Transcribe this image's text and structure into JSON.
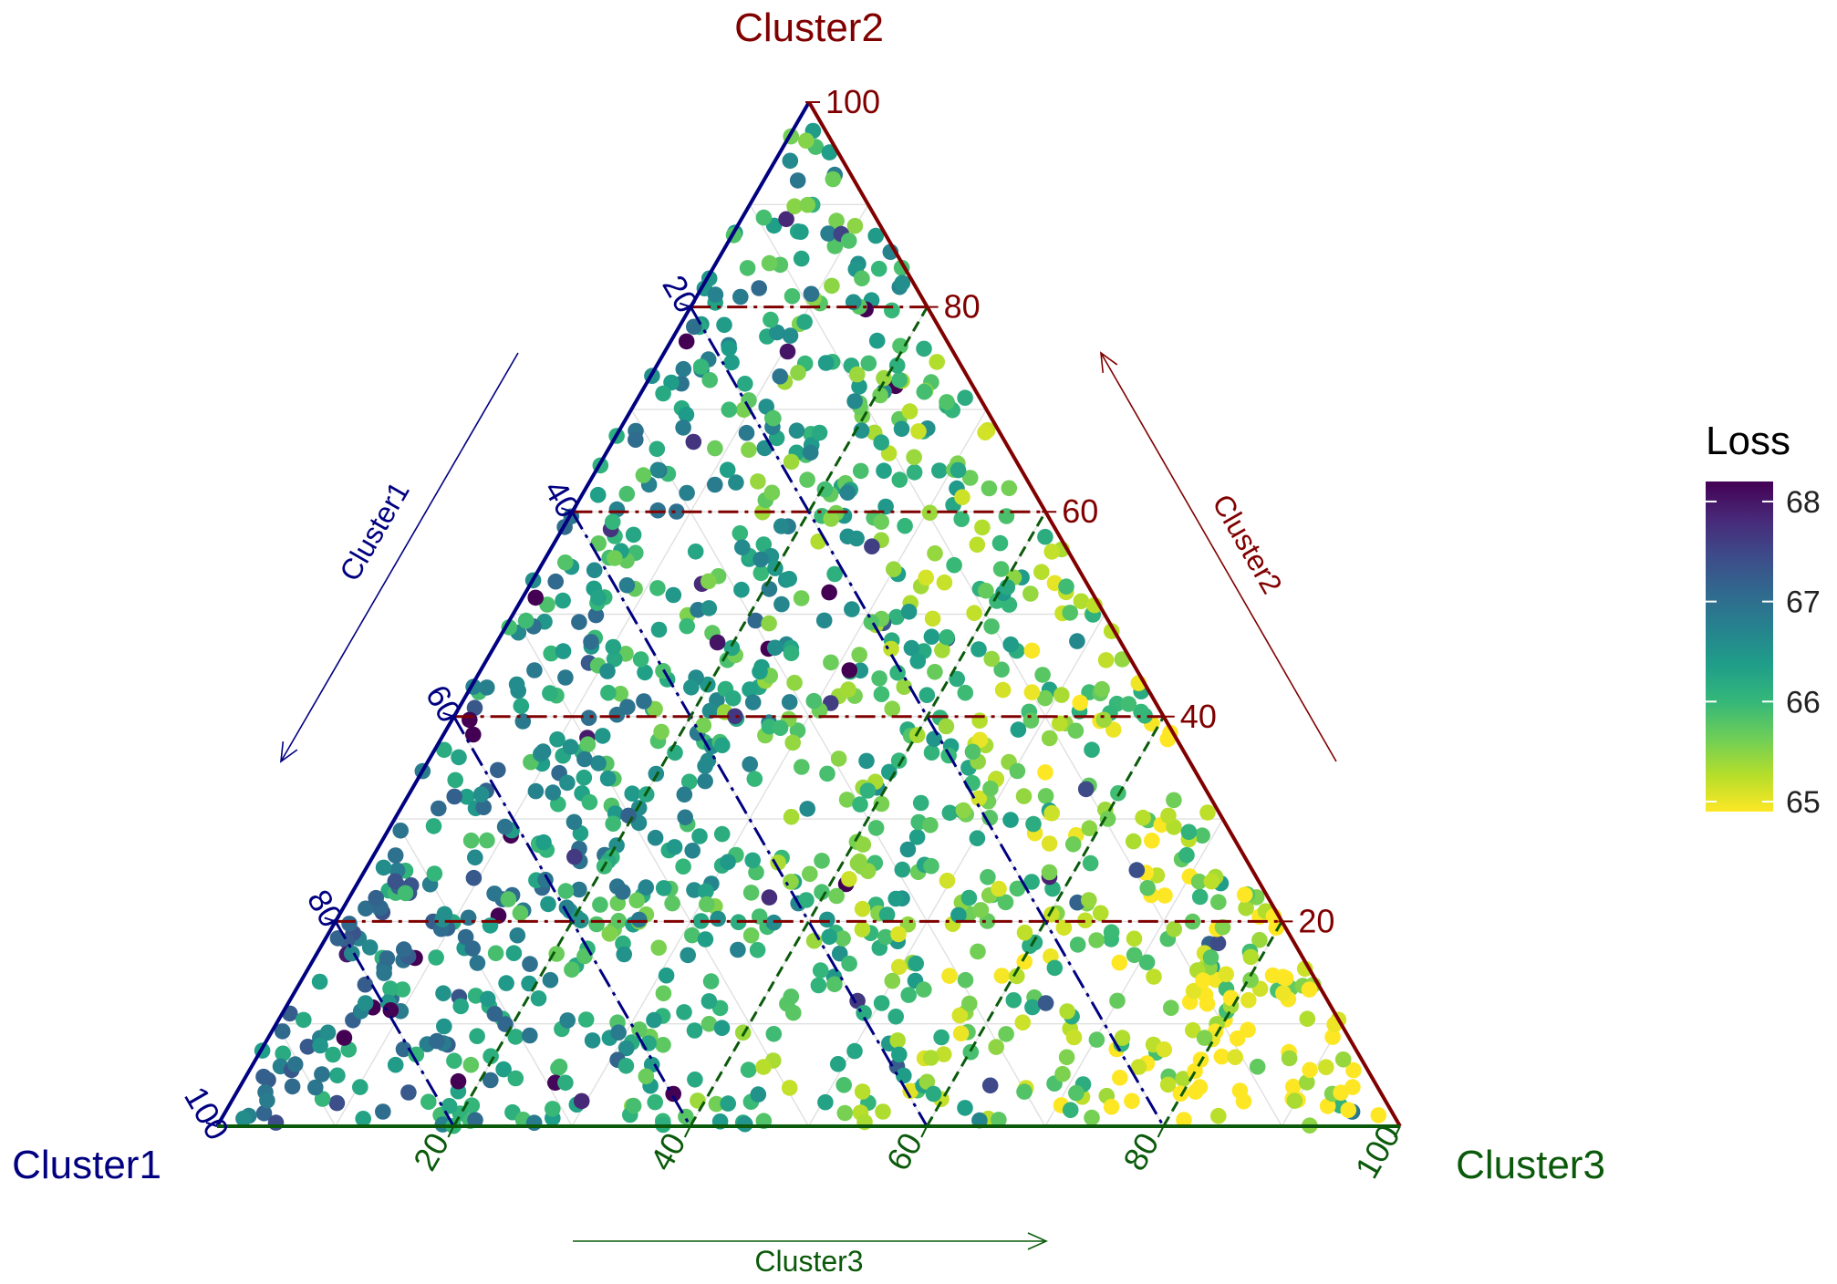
{
  "chart_data": {
    "type": "scatter",
    "subtype": "ternary",
    "axes": {
      "a": {
        "name": "Cluster1",
        "color": "#000080",
        "ticks": [
          20,
          40,
          60,
          80,
          100
        ]
      },
      "b": {
        "name": "Cluster2",
        "color": "#800000",
        "ticks": [
          20,
          40,
          60,
          80,
          100
        ]
      },
      "c": {
        "name": "Cluster3",
        "color": "#0B5A0B",
        "ticks": [
          20,
          40,
          60,
          80,
          100
        ]
      }
    },
    "axis_range": [
      0,
      100
    ],
    "reference_lines": {
      "Cluster1": [
        20,
        40,
        60,
        80
      ],
      "Cluster2": [
        20,
        40,
        60,
        80
      ],
      "Cluster3": [
        20,
        40,
        60,
        80
      ]
    },
    "grid": true,
    "color_scale": {
      "title": "Loss",
      "palette": [
        "#FDE725",
        "#B5DE2B",
        "#6ECE58",
        "#35B779",
        "#1F9E89",
        "#26828E",
        "#31688E",
        "#3E4A89",
        "#482878",
        "#440154"
      ],
      "range": [
        64.9,
        68.2
      ],
      "ticks": [
        "65",
        "66",
        "67",
        "68"
      ]
    },
    "legend_position": "right",
    "points_summary": {
      "count": 1200,
      "distribution": "uniform over simplex",
      "loss_range": [
        64.9,
        68.2
      ]
    }
  }
}
